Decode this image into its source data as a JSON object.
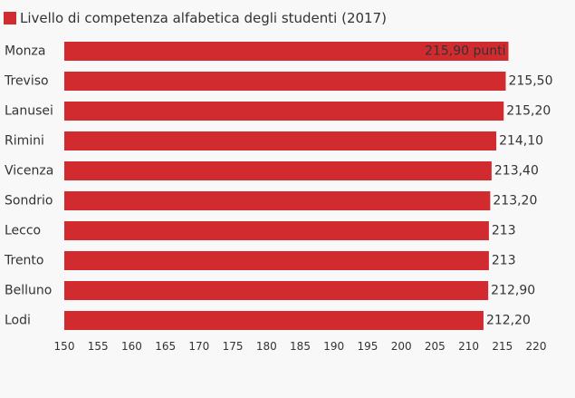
{
  "chart_data": {
    "type": "bar",
    "orientation": "horizontal",
    "legend": {
      "label": "Livello di competenza alfabetica degli studenti (2017)",
      "placement": "top-left"
    },
    "categories": [
      "Monza",
      "Treviso",
      "Lanusei",
      "Rimini",
      "Vicenza",
      "Sondrio",
      "Lecco",
      "Trento",
      "Belluno",
      "Lodi"
    ],
    "series": [
      {
        "name": "Livello di competenza alfabetica degli studenti (2017)",
        "values": [
          215.9,
          215.5,
          215.2,
          214.1,
          213.4,
          213.2,
          213,
          213,
          212.9,
          212.2
        ],
        "labels": [
          "215,90 punti",
          "215,50",
          "215,20",
          "214,10",
          "213,40",
          "213,20",
          "213",
          "213",
          "212,90",
          "212,20"
        ]
      }
    ],
    "xlim": [
      150,
      220
    ],
    "xticks": [
      "150",
      "155",
      "160",
      "165",
      "170",
      "175",
      "180",
      "185",
      "190",
      "195",
      "200",
      "205",
      "210",
      "215",
      "220"
    ],
    "grid": false,
    "colors": {
      "bar": "#d12b30",
      "text": "#333333",
      "background": "#f8f8f8"
    }
  }
}
